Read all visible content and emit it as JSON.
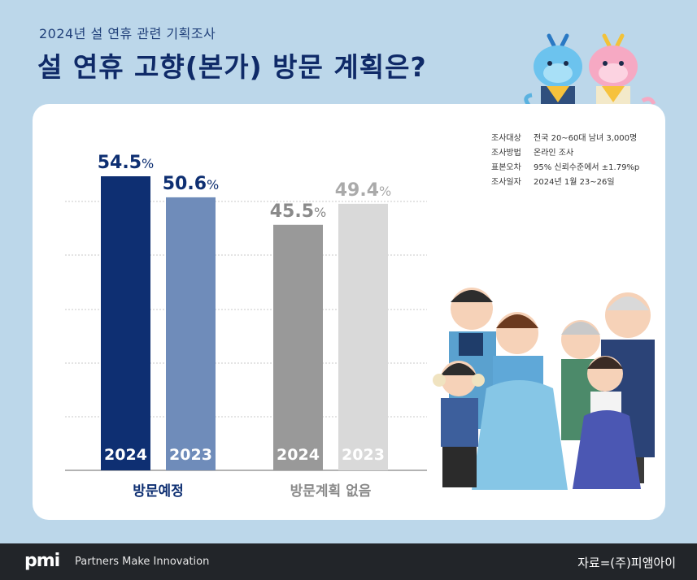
{
  "header": {
    "subtitle": "2024년 설 연휴 관련 기획조사",
    "title": "설 연휴 고향(본가) 방문 계획은?"
  },
  "survey_info": [
    {
      "key": "조사대상",
      "value": "전국 20~60대 남녀 3,000명"
    },
    {
      "key": "조사방법",
      "value": "온라인 조사"
    },
    {
      "key": "표본오차",
      "value": "95% 신뢰수준에서 ±1.79%p"
    },
    {
      "key": "조사일자",
      "value": "2024년 1월 23~26일"
    }
  ],
  "footer": {
    "logo": "pmi",
    "tagline": "Partners Make Innovation",
    "source": "자료=(주)피앰아이"
  },
  "colors": {
    "visit_2024": "#0e2f72",
    "visit_2023": "#6f8cba",
    "novisit_2024": "#999999",
    "novisit_2023": "#d9d9d9",
    "visit_label": "#0e2f72",
    "novisit_label": "#8a8a8a"
  },
  "chart_data": {
    "type": "bar",
    "title": "설 연휴 고향(본가) 방문 계획은?",
    "categories": [
      "방문예정",
      "방문계획 없음"
    ],
    "series": [
      {
        "name": "2024",
        "values": [
          54.5,
          45.5
        ]
      },
      {
        "name": "2023",
        "values": [
          50.6,
          49.4
        ]
      }
    ],
    "value_suffix": "%",
    "ylim": [
      0,
      60
    ],
    "grid": true,
    "legend": "none"
  }
}
